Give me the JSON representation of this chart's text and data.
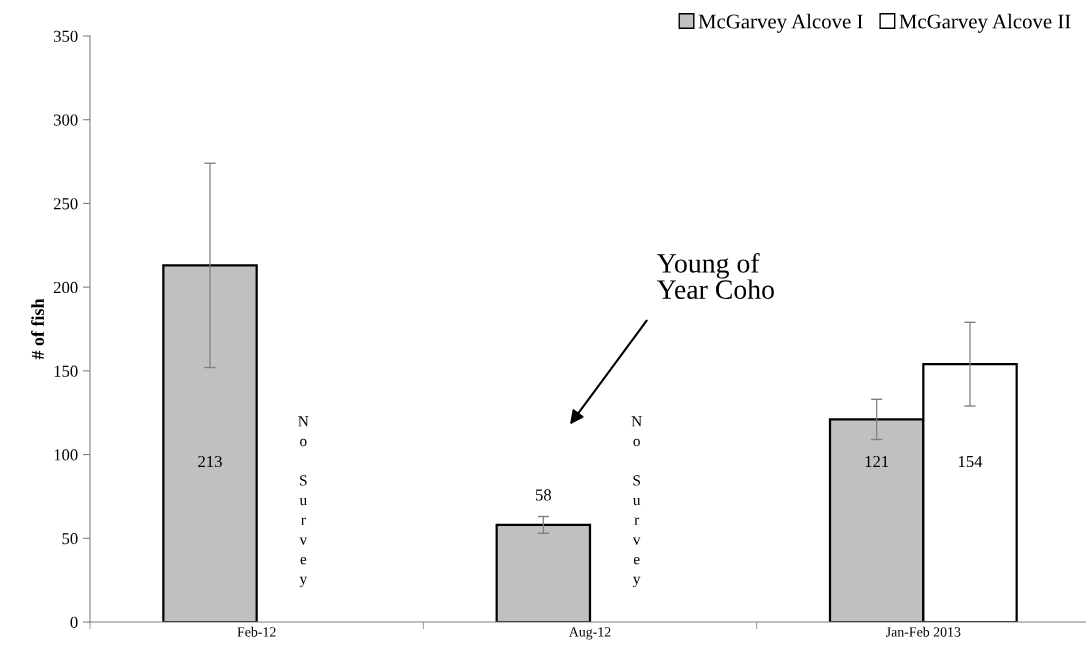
{
  "chart_data": {
    "type": "bar",
    "ylabel": "# of fish",
    "categories": [
      "Feb-12",
      "Aug-12",
      "Jan-Feb 2013"
    ],
    "series": [
      {
        "name": "McGarvey Alcove I",
        "color": "#c0c0c0",
        "values": [
          213,
          58,
          121
        ],
        "errors": [
          61,
          5,
          12
        ]
      },
      {
        "name": "McGarvey Alcove II",
        "color": "#ffffff",
        "values": [
          null,
          null,
          154
        ],
        "errors": [
          null,
          null,
          25
        ]
      }
    ],
    "ylim": [
      0,
      350
    ],
    "yticks": [
      0,
      50,
      100,
      150,
      200,
      250,
      300,
      350
    ],
    "data_labels": true,
    "legend": "top right",
    "grid": false,
    "annotations": [
      "N\no\n\nS\nu\nr\nv\ne\ny",
      "N\no\n\nS\nu\nr\nv\ne\ny",
      "Young of\nYear Coho"
    ]
  }
}
